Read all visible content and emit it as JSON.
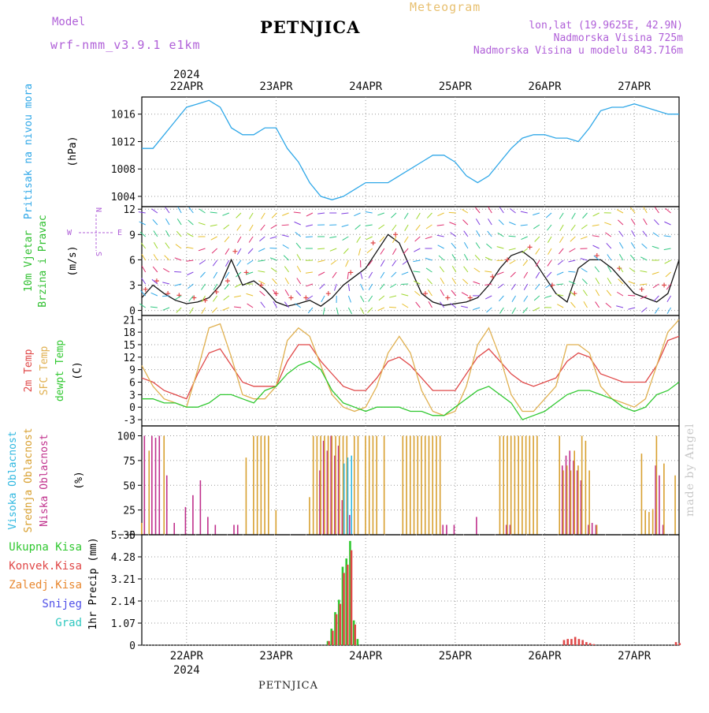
{
  "header": {
    "model_label": "Model",
    "model_name": "wrf-nmm_v3.9.1 e1km",
    "title": "PETNJICA",
    "meteogram": "Meteogram",
    "location": {
      "coords": "lon,lat (19.9625E, 42.9N)",
      "altitude": "Nadmorska Visina 725m",
      "model_altitude": "Nadmorska Visina u modelu 843.716m"
    }
  },
  "footer": {
    "station": "PETNJICA",
    "credit": "made by Angel"
  },
  "colors": {
    "pressure": "#30a8e8",
    "temp2m": "#e04848",
    "sfc_temp": "#e0b050",
    "dewpoint": "#30c830",
    "high_cloud": "#30b8e0",
    "mid_cloud": "#d8a030",
    "low_cloud": "#c0308c",
    "total_precip": "#30c830",
    "conv_precip": "#e04848",
    "frozen_precip": "#e88830",
    "snow": "#5050e8",
    "hail": "#30c8c0",
    "wind_label": "#30c030",
    "dir_legend": "#b060d8"
  },
  "chart_data": {
    "type": "meteogram",
    "time_axis": {
      "year": "2024",
      "day_labels": [
        "22APR",
        "23APR",
        "24APR",
        "25APR",
        "26APR",
        "27APR"
      ],
      "start": "2024-04-21T12:00",
      "end": "2024-04-27T12:00"
    },
    "panels": [
      {
        "id": "pressure",
        "type": "line",
        "ylabel": "Pritisak na nivou mora",
        "unit": "(hPa)",
        "ylim": [
          1002.5,
          1018.5
        ],
        "yticks": [
          "1004",
          "1008",
          "1012",
          "1016"
        ],
        "series": [
          {
            "x_hours": [
              0,
              3,
              6,
              9,
              12,
              15,
              18,
              21,
              24,
              27,
              30,
              33,
              36,
              39,
              42,
              45,
              48,
              51,
              54,
              57,
              60,
              63,
              66,
              69,
              72,
              75,
              78,
              81,
              84,
              87,
              90,
              93,
              96,
              99,
              102,
              105,
              108,
              111,
              114,
              117,
              120,
              123,
              126,
              129,
              132,
              135,
              138,
              141,
              144
            ],
            "values": [
              1011,
              1011,
              1013,
              1015,
              1017,
              1017.5,
              1018,
              1017,
              1014,
              1013,
              1013,
              1014,
              1014,
              1011,
              1009,
              1006,
              1004,
              1003.5,
              1004,
              1005,
              1006,
              1006,
              1006,
              1007,
              1008,
              1009,
              1010,
              1010,
              1009,
              1007,
              1006,
              1007,
              1009,
              1011,
              1012.5,
              1013,
              1013,
              1012.5,
              1012.5,
              1012,
              1014,
              1016.5,
              1017,
              1017,
              1017.5,
              1017,
              1016.5,
              1016,
              1016
            ]
          }
        ]
      },
      {
        "id": "wind",
        "type": "line",
        "ylabel": [
          "10m Vjetar",
          "Brzina i Pravac"
        ],
        "unit": "(m/s)",
        "ylim": [
          -0.6,
          12.3
        ],
        "yticks": [
          "0",
          "3",
          "6",
          "9",
          "12"
        ],
        "direction_legend": [
          "N",
          "E",
          "W",
          "S"
        ],
        "series": [
          {
            "name": "speed",
            "x_hours": [
              0,
              3,
              6,
              9,
              12,
              15,
              18,
              21,
              24,
              27,
              30,
              33,
              36,
              39,
              42,
              45,
              48,
              51,
              54,
              57,
              60,
              63,
              66,
              69,
              72,
              75,
              78,
              81,
              84,
              87,
              90,
              93,
              96,
              99,
              102,
              105,
              108,
              111,
              114,
              117,
              120,
              123,
              126,
              129,
              132,
              135,
              138,
              141,
              144
            ],
            "values": [
              1.5,
              3,
              2,
              1.2,
              0.8,
              1,
              1.5,
              3,
              6,
              3,
              3.5,
              2.5,
              1,
              0.5,
              0.8,
              1.2,
              0.5,
              1.5,
              3,
              4,
              5,
              7,
              9,
              8,
              5,
              2,
              1,
              0.6,
              0.8,
              1,
              1.5,
              3,
              5,
              6.5,
              7,
              6,
              4,
              2,
              1,
              5,
              6,
              6,
              5,
              3.5,
              2,
              1.5,
              1,
              2,
              6
            ]
          }
        ],
        "gusts": {
          "x_hours": [
            1,
            4,
            7,
            10,
            14,
            17,
            20,
            23,
            25,
            28,
            32,
            36,
            40,
            44,
            50,
            56,
            62,
            68,
            76,
            82,
            88,
            94,
            98,
            104,
            110,
            116,
            122,
            128,
            134,
            140
          ],
          "values": [
            2.5,
            3.5,
            2,
            1.8,
            1.5,
            1.2,
            2.2,
            3.5,
            7,
            4.5,
            3,
            2,
            1.5,
            1.5,
            2,
            4.5,
            8,
            9,
            2,
            1.5,
            1.5,
            4,
            6,
            7.5,
            3,
            2,
            6.5,
            5,
            2.5,
            3
          ]
        }
      },
      {
        "id": "temperature",
        "type": "line",
        "ylabel": [
          "2m Temp",
          "SFC Temp",
          "dewpt Temp"
        ],
        "unit": "(C)",
        "ylim": [
          -4.5,
          22
        ],
        "yticks": [
          "-3",
          "0",
          "3",
          "6",
          "9",
          "12",
          "15",
          "18",
          "21"
        ],
        "series": [
          {
            "name": "2m Temp",
            "x_hours": [
              0,
              3,
              6,
              9,
              12,
              15,
              18,
              21,
              24,
              27,
              30,
              33,
              36,
              39,
              42,
              45,
              48,
              51,
              54,
              57,
              60,
              63,
              66,
              69,
              72,
              75,
              78,
              81,
              84,
              87,
              90,
              93,
              96,
              99,
              102,
              105,
              108,
              111,
              114,
              117,
              120,
              123,
              126,
              129,
              132,
              135,
              138,
              141,
              144
            ],
            "values": [
              7,
              6,
              4,
              3,
              2,
              8,
              13,
              14,
              10,
              6,
              5,
              5,
              5,
              11,
              15,
              15,
              11,
              8,
              5,
              4,
              4,
              7,
              11,
              12,
              10,
              7,
              4,
              4,
              4,
              8,
              12,
              14,
              11,
              8,
              6,
              5,
              6,
              7,
              11,
              13,
              12,
              8,
              7,
              6,
              6,
              6,
              10,
              16,
              17
            ]
          },
          {
            "name": "SFC Temp",
            "x_hours": [
              0,
              3,
              6,
              9,
              12,
              15,
              18,
              21,
              24,
              27,
              30,
              33,
              36,
              39,
              42,
              45,
              48,
              51,
              54,
              57,
              60,
              63,
              66,
              69,
              72,
              75,
              78,
              81,
              84,
              87,
              90,
              93,
              96,
              99,
              102,
              105,
              108,
              111,
              114,
              117,
              120,
              123,
              126,
              129,
              132,
              135,
              138,
              141,
              144
            ],
            "values": [
              10,
              5,
              2,
              1,
              0,
              9,
              19,
              20,
              12,
              3,
              2,
              2,
              5,
              16,
              19,
              17,
              10,
              3,
              0,
              -1,
              0,
              5,
              13,
              17,
              13,
              4,
              -1,
              -2,
              -1,
              5,
              15,
              19,
              12,
              3,
              -1,
              -1,
              2,
              5,
              15,
              15,
              13,
              5,
              2,
              1,
              0,
              2,
              10,
              18,
              21
            ]
          },
          {
            "name": "dewpt Temp",
            "x_hours": [
              0,
              3,
              6,
              9,
              12,
              15,
              18,
              21,
              24,
              27,
              30,
              33,
              36,
              39,
              42,
              45,
              48,
              51,
              54,
              57,
              60,
              63,
              66,
              69,
              72,
              75,
              78,
              81,
              84,
              87,
              90,
              93,
              96,
              99,
              102,
              105,
              108,
              111,
              114,
              117,
              120,
              123,
              126,
              129,
              132,
              135,
              138,
              141,
              144
            ],
            "values": [
              2,
              2,
              1,
              1,
              0,
              0,
              1,
              3,
              3,
              2,
              1,
              4,
              5,
              8,
              10,
              11,
              9,
              4,
              1,
              0,
              -1,
              0,
              0,
              0,
              -1,
              -1,
              -2,
              -2,
              0,
              2,
              4,
              5,
              3,
              1,
              -3,
              -2,
              -1,
              1,
              3,
              4,
              4,
              3,
              2,
              0,
              -1,
              0,
              3,
              4,
              6
            ]
          }
        ]
      },
      {
        "id": "clouds",
        "type": "bar",
        "ylabel": [
          "Visoka Oblacnost",
          "Srednja Oblacnost",
          "Niska Oblacnost"
        ],
        "unit": "(%)",
        "ylim": [
          0,
          110
        ],
        "yticks": [
          "0",
          "25",
          "50",
          "75",
          "100"
        ],
        "series": [
          {
            "name": "Niska Oblacnost",
            "x_hours": [
              1,
              3,
              4,
              5,
              7,
              9,
              12,
              14,
              16,
              18,
              20,
              25,
              26,
              48,
              49,
              50,
              51,
              52,
              53,
              54,
              56,
              81,
              82,
              84,
              90,
              98,
              99,
              113,
              114,
              115,
              116,
              117,
              118,
              120,
              121,
              122,
              138,
              139,
              140
            ],
            "values": [
              100,
              100,
              98,
              100,
              60,
              12,
              28,
              40,
              55,
              18,
              10,
              10,
              10,
              65,
              95,
              85,
              100,
              80,
              90,
              35,
              20,
              10,
              10,
              10,
              18,
              10,
              10,
              70,
              80,
              85,
              75,
              65,
              55,
              10,
              12,
              10,
              70,
              60,
              10
            ]
          },
          {
            "name": "Srednja Oblacnost",
            "x_hours": [
              0,
              2,
              6,
              28,
              30,
              31,
              32,
              33,
              34,
              36,
              45,
              46,
              47,
              48,
              49,
              50,
              51,
              52,
              53,
              54,
              55,
              57,
              58,
              60,
              61,
              62,
              63,
              65,
              70,
              71,
              72,
              73,
              74,
              75,
              76,
              77,
              78,
              79,
              80,
              96,
              97,
              98,
              99,
              100,
              101,
              102,
              103,
              104,
              105,
              106,
              112,
              113,
              114,
              115,
              116,
              117,
              118,
              119,
              120,
              122,
              134,
              135,
              136,
              137,
              138,
              140,
              143
            ],
            "values": [
              12,
              85,
              100,
              78,
              100,
              100,
              100,
              100,
              100,
              25,
              38,
              100,
              100,
              100,
              100,
              100,
              100,
              100,
              100,
              100,
              100,
              100,
              100,
              100,
              100,
              100,
              100,
              100,
              100,
              100,
              100,
              100,
              100,
              100,
              100,
              100,
              100,
              100,
              100,
              100,
              100,
              100,
              100,
              100,
              100,
              100,
              100,
              100,
              100,
              100,
              100,
              65,
              70,
              65,
              85,
              70,
              100,
              95,
              65,
              10,
              82,
              25,
              23,
              26,
              100,
              72,
              60
            ]
          },
          {
            "name": "Visoka Oblacnost",
            "x_hours": [
              54,
              55,
              56
            ],
            "values": [
              72,
              78,
              80
            ]
          }
        ]
      },
      {
        "id": "precip",
        "type": "bar",
        "ylabel": "1hr Precip",
        "unit": "(mm)",
        "ylim": [
          0,
          5.35
        ],
        "yticks": [
          "0",
          "1.07",
          "2.14",
          "3.21",
          "4.28",
          "5.35"
        ],
        "legend": [
          "Ukupna Kisa",
          "Konvek.Kisa",
          "Zaledj.Kisa",
          "Snijeg",
          "Grad"
        ],
        "series": [
          {
            "name": "Ukupna Kisa",
            "x_hours": [
              50,
              51,
              52,
              53,
              54,
              55,
              56,
              57,
              58
            ],
            "values": [
              0.2,
              0.8,
              1.6,
              2.2,
              3.8,
              4.2,
              5.05,
              1.2,
              0.3
            ]
          },
          {
            "name": "Konvek.Kisa",
            "x_hours": [
              50,
              51,
              52,
              53,
              54,
              55,
              56,
              57,
              113,
              114,
              115,
              116,
              117,
              118,
              119,
              120,
              121,
              143,
              144
            ],
            "values": [
              0.2,
              0.7,
              1.5,
              2.0,
              3.5,
              3.9,
              4.6,
              1.0,
              0.25,
              0.3,
              0.3,
              0.4,
              0.3,
              0.25,
              0.15,
              0.1,
              0.05,
              0.15,
              0.1
            ]
          }
        ]
      }
    ]
  }
}
